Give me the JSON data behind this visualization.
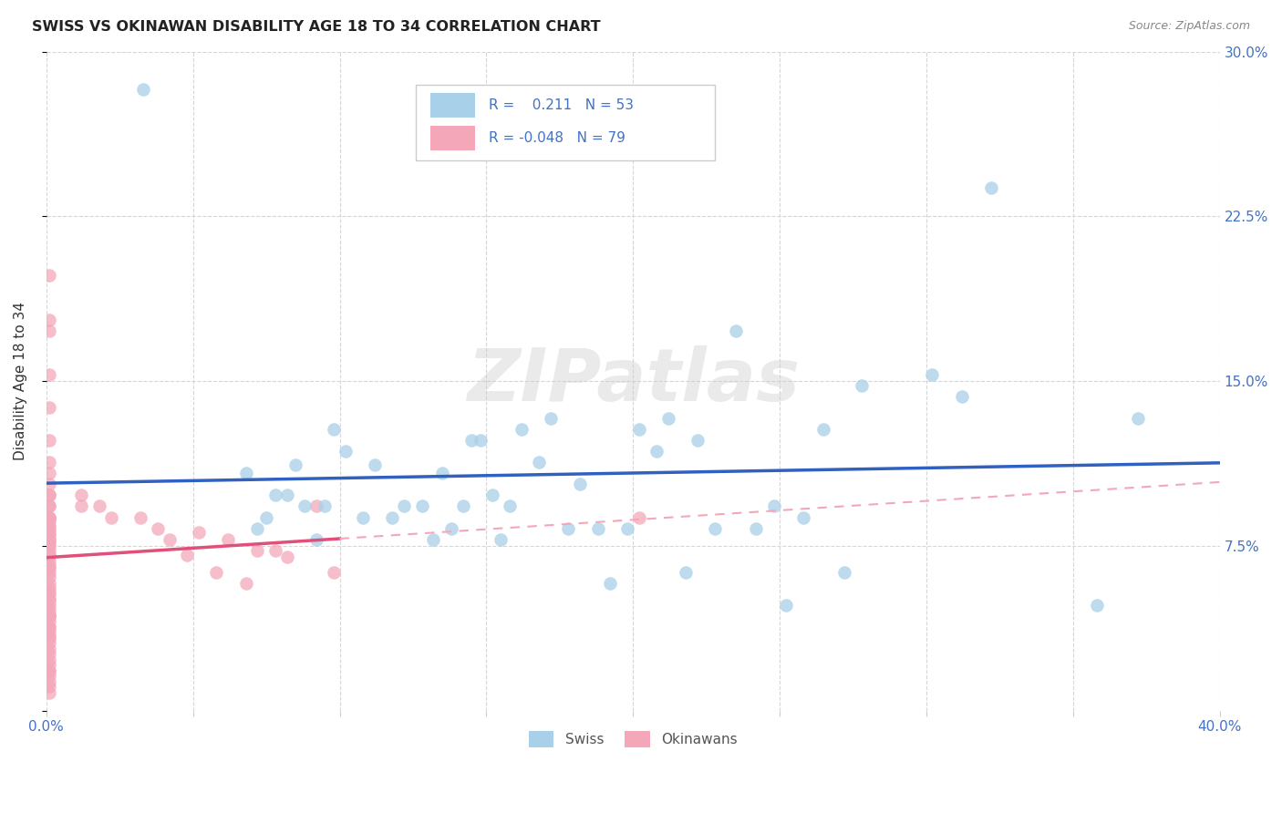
{
  "title": "SWISS VS OKINAWAN DISABILITY AGE 18 TO 34 CORRELATION CHART",
  "source": "Source: ZipAtlas.com",
  "ylabel": "Disability Age 18 to 34",
  "xlim": [
    0.0,
    0.4
  ],
  "ylim": [
    0.0,
    0.3
  ],
  "xtick_positions": [
    0.0,
    0.05,
    0.1,
    0.15,
    0.2,
    0.25,
    0.3,
    0.35,
    0.4
  ],
  "xticklabels": [
    "0.0%",
    "",
    "",
    "",
    "",
    "",
    "",
    "",
    "40.0%"
  ],
  "ytick_positions": [
    0.0,
    0.075,
    0.15,
    0.225,
    0.3
  ],
  "yticklabels": [
    "",
    "7.5%",
    "15.0%",
    "22.5%",
    "30.0%"
  ],
  "swiss_R": 0.211,
  "swiss_N": 53,
  "okinawan_R": -0.048,
  "okinawan_N": 79,
  "swiss_color": "#a8d0e8",
  "okinawan_color": "#f4a7b9",
  "swiss_line_color": "#3060c0",
  "okinawan_line_color": "#e0507a",
  "okinawan_dash_color": "#f4a7b9",
  "watermark_text": "ZIPatlas",
  "legend_labels": [
    "Swiss",
    "Okinawans"
  ],
  "swiss_x": [
    0.033,
    0.068,
    0.072,
    0.075,
    0.078,
    0.082,
    0.085,
    0.088,
    0.092,
    0.095,
    0.098,
    0.102,
    0.108,
    0.112,
    0.118,
    0.122,
    0.128,
    0.132,
    0.135,
    0.138,
    0.142,
    0.145,
    0.148,
    0.152,
    0.155,
    0.158,
    0.162,
    0.168,
    0.172,
    0.178,
    0.182,
    0.188,
    0.192,
    0.198,
    0.202,
    0.208,
    0.212,
    0.218,
    0.222,
    0.228,
    0.235,
    0.242,
    0.248,
    0.252,
    0.258,
    0.265,
    0.272,
    0.278,
    0.302,
    0.312,
    0.322,
    0.358,
    0.372
  ],
  "swiss_y": [
    0.283,
    0.108,
    0.083,
    0.088,
    0.098,
    0.098,
    0.112,
    0.093,
    0.078,
    0.093,
    0.128,
    0.118,
    0.088,
    0.112,
    0.088,
    0.093,
    0.093,
    0.078,
    0.108,
    0.083,
    0.093,
    0.123,
    0.123,
    0.098,
    0.078,
    0.093,
    0.128,
    0.113,
    0.133,
    0.083,
    0.103,
    0.083,
    0.058,
    0.083,
    0.128,
    0.118,
    0.133,
    0.063,
    0.123,
    0.083,
    0.173,
    0.083,
    0.093,
    0.048,
    0.088,
    0.128,
    0.063,
    0.148,
    0.153,
    0.143,
    0.238,
    0.048,
    0.133
  ],
  "okinawan_x": [
    0.001,
    0.001,
    0.001,
    0.001,
    0.001,
    0.001,
    0.001,
    0.001,
    0.001,
    0.001,
    0.001,
    0.001,
    0.001,
    0.001,
    0.001,
    0.001,
    0.001,
    0.001,
    0.001,
    0.001,
    0.001,
    0.001,
    0.001,
    0.001,
    0.001,
    0.001,
    0.001,
    0.001,
    0.001,
    0.001,
    0.001,
    0.001,
    0.001,
    0.001,
    0.001,
    0.001,
    0.001,
    0.001,
    0.001,
    0.001,
    0.001,
    0.001,
    0.001,
    0.001,
    0.001,
    0.001,
    0.001,
    0.001,
    0.001,
    0.001,
    0.001,
    0.001,
    0.001,
    0.001,
    0.001,
    0.001,
    0.001,
    0.001,
    0.001,
    0.001,
    0.001,
    0.012,
    0.012,
    0.018,
    0.022,
    0.032,
    0.038,
    0.042,
    0.048,
    0.052,
    0.058,
    0.062,
    0.068,
    0.072,
    0.078,
    0.082,
    0.092,
    0.098,
    0.202
  ],
  "okinawan_y": [
    0.153,
    0.138,
    0.123,
    0.113,
    0.108,
    0.103,
    0.098,
    0.098,
    0.093,
    0.093,
    0.088,
    0.088,
    0.088,
    0.086,
    0.084,
    0.083,
    0.081,
    0.08,
    0.078,
    0.078,
    0.076,
    0.075,
    0.073,
    0.071,
    0.071,
    0.068,
    0.066,
    0.065,
    0.063,
    0.061,
    0.058,
    0.056,
    0.054,
    0.053,
    0.051,
    0.05,
    0.048,
    0.046,
    0.044,
    0.043,
    0.041,
    0.038,
    0.036,
    0.034,
    0.031,
    0.028,
    0.026,
    0.023,
    0.021,
    0.018,
    0.016,
    0.013,
    0.011,
    0.008,
    0.178,
    0.173,
    0.043,
    0.038,
    0.033,
    0.198,
    0.018,
    0.098,
    0.093,
    0.093,
    0.088,
    0.088,
    0.083,
    0.078,
    0.071,
    0.081,
    0.063,
    0.078,
    0.058,
    0.073,
    0.073,
    0.07,
    0.093,
    0.063,
    0.088
  ]
}
